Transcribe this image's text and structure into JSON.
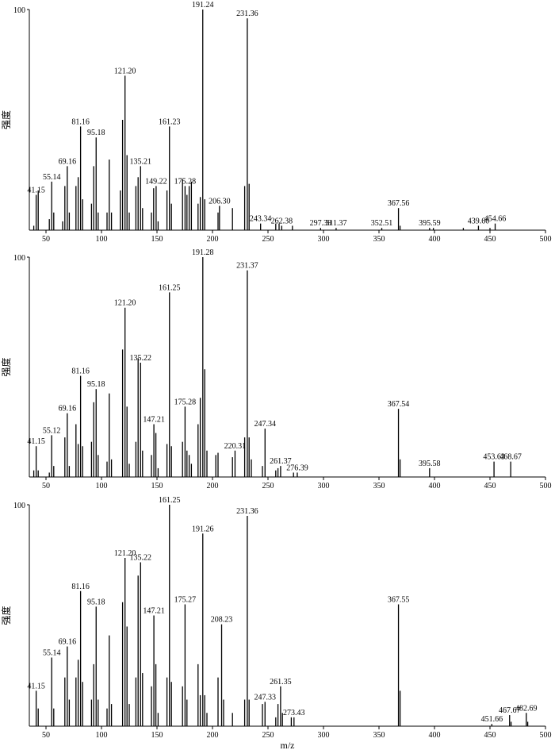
{
  "chart_data": [
    {
      "type": "bar",
      "ylabel": "强度",
      "xlabel": "",
      "xlim": [
        35,
        500
      ],
      "ylim": [
        0,
        100
      ],
      "ytick_labels": [
        "100"
      ],
      "xticks": [
        50,
        100,
        150,
        200,
        250,
        300,
        350,
        400,
        450,
        500
      ],
      "xtick_labels": [
        "50",
        "100",
        "150",
        "200",
        "250",
        "300",
        "350",
        "400",
        "450",
        "500"
      ],
      "peaks": [
        {
          "x": 41.15,
          "y": 16,
          "label": "41.15"
        },
        {
          "x": 43,
          "y": 18
        },
        {
          "x": 39,
          "y": 2
        },
        {
          "x": 53,
          "y": 5
        },
        {
          "x": 55.14,
          "y": 22,
          "label": "55.14"
        },
        {
          "x": 57,
          "y": 8
        },
        {
          "x": 65,
          "y": 4
        },
        {
          "x": 67,
          "y": 20
        },
        {
          "x": 69.16,
          "y": 29,
          "label": "69.16"
        },
        {
          "x": 71,
          "y": 8
        },
        {
          "x": 77,
          "y": 20
        },
        {
          "x": 79,
          "y": 24
        },
        {
          "x": 81.16,
          "y": 47,
          "label": "81.16"
        },
        {
          "x": 83,
          "y": 14
        },
        {
          "x": 91,
          "y": 12
        },
        {
          "x": 93,
          "y": 29
        },
        {
          "x": 95.18,
          "y": 42,
          "label": "95.18"
        },
        {
          "x": 97,
          "y": 8
        },
        {
          "x": 105,
          "y": 8
        },
        {
          "x": 107,
          "y": 32
        },
        {
          "x": 109,
          "y": 8
        },
        {
          "x": 117,
          "y": 18
        },
        {
          "x": 119,
          "y": 50
        },
        {
          "x": 121.2,
          "y": 70,
          "label": "121.20"
        },
        {
          "x": 123,
          "y": 34
        },
        {
          "x": 125,
          "y": 8
        },
        {
          "x": 131,
          "y": 20
        },
        {
          "x": 133,
          "y": 24
        },
        {
          "x": 135.21,
          "y": 29,
          "label": "135.21"
        },
        {
          "x": 137,
          "y": 10
        },
        {
          "x": 145,
          "y": 8
        },
        {
          "x": 147,
          "y": 19
        },
        {
          "x": 149.22,
          "y": 20,
          "label": "149.22"
        },
        {
          "x": 151,
          "y": 4
        },
        {
          "x": 159,
          "y": 18
        },
        {
          "x": 161.23,
          "y": 47,
          "label": "161.23"
        },
        {
          "x": 163,
          "y": 12
        },
        {
          "x": 173,
          "y": 23
        },
        {
          "x": 175.28,
          "y": 20,
          "label": "175.28"
        },
        {
          "x": 177,
          "y": 16
        },
        {
          "x": 179,
          "y": 20
        },
        {
          "x": 181,
          "y": 22
        },
        {
          "x": 187,
          "y": 12
        },
        {
          "x": 189,
          "y": 15
        },
        {
          "x": 191.24,
          "y": 100,
          "label": "191.24"
        },
        {
          "x": 193,
          "y": 14
        },
        {
          "x": 205,
          "y": 8
        },
        {
          "x": 206.3,
          "y": 11,
          "label": "206.30"
        },
        {
          "x": 218,
          "y": 10
        },
        {
          "x": 229,
          "y": 20
        },
        {
          "x": 231.36,
          "y": 96,
          "label": "231.36"
        },
        {
          "x": 233,
          "y": 21
        },
        {
          "x": 243.34,
          "y": 3,
          "label": "243.34"
        },
        {
          "x": 257,
          "y": 3
        },
        {
          "x": 260,
          "y": 3
        },
        {
          "x": 262.38,
          "y": 2,
          "label": "262.38"
        },
        {
          "x": 272,
          "y": 2
        },
        {
          "x": 297.39,
          "y": 1,
          "label": "297.39"
        },
        {
          "x": 311.37,
          "y": 1,
          "label": "311.37"
        },
        {
          "x": 352.51,
          "y": 1,
          "label": "352.51"
        },
        {
          "x": 367.56,
          "y": 10,
          "label": "367.56"
        },
        {
          "x": 369,
          "y": 2
        },
        {
          "x": 395.59,
          "y": 1,
          "label": "395.59"
        },
        {
          "x": 399,
          "y": 1
        },
        {
          "x": 426,
          "y": 1
        },
        {
          "x": 439.6,
          "y": 2,
          "label": "439.60"
        },
        {
          "x": 450,
          "y": 1
        },
        {
          "x": 454.66,
          "y": 3,
          "label": "454.66"
        }
      ]
    },
    {
      "type": "bar",
      "ylabel": "强度",
      "xlabel": "",
      "xlim": [
        35,
        500
      ],
      "ylim": [
        0,
        100
      ],
      "ytick_labels": [
        "100"
      ],
      "xticks": [
        50,
        100,
        150,
        200,
        250,
        300,
        350,
        400,
        450,
        500
      ],
      "xtick_labels": [
        "50",
        "100",
        "150",
        "200",
        "250",
        "300",
        "350",
        "400",
        "450",
        "500"
      ],
      "peaks": [
        {
          "x": 39,
          "y": 3
        },
        {
          "x": 41.15,
          "y": 14,
          "label": "41.15"
        },
        {
          "x": 43,
          "y": 3
        },
        {
          "x": 53,
          "y": 2
        },
        {
          "x": 55.12,
          "y": 19,
          "label": "55.12"
        },
        {
          "x": 57,
          "y": 5
        },
        {
          "x": 67,
          "y": 18
        },
        {
          "x": 69.16,
          "y": 29,
          "label": "69.16"
        },
        {
          "x": 71,
          "y": 5
        },
        {
          "x": 77,
          "y": 24
        },
        {
          "x": 79,
          "y": 15
        },
        {
          "x": 81.16,
          "y": 46,
          "label": "81.16"
        },
        {
          "x": 83,
          "y": 14
        },
        {
          "x": 91,
          "y": 16
        },
        {
          "x": 93,
          "y": 34
        },
        {
          "x": 95.18,
          "y": 40,
          "label": "95.18"
        },
        {
          "x": 97,
          "y": 10
        },
        {
          "x": 105,
          "y": 7
        },
        {
          "x": 107,
          "y": 38
        },
        {
          "x": 109,
          "y": 8
        },
        {
          "x": 119,
          "y": 58
        },
        {
          "x": 121.2,
          "y": 77,
          "label": "121.20"
        },
        {
          "x": 123,
          "y": 32
        },
        {
          "x": 125,
          "y": 6
        },
        {
          "x": 131,
          "y": 16
        },
        {
          "x": 133,
          "y": 54
        },
        {
          "x": 135.22,
          "y": 52,
          "label": "135.22"
        },
        {
          "x": 137,
          "y": 12
        },
        {
          "x": 145,
          "y": 10
        },
        {
          "x": 147.21,
          "y": 24,
          "label": "147.21"
        },
        {
          "x": 149,
          "y": 20
        },
        {
          "x": 151,
          "y": 4
        },
        {
          "x": 159,
          "y": 15
        },
        {
          "x": 161.25,
          "y": 84,
          "label": "161.25"
        },
        {
          "x": 163,
          "y": 14
        },
        {
          "x": 173,
          "y": 16
        },
        {
          "x": 175.28,
          "y": 32,
          "label": "175.28"
        },
        {
          "x": 177,
          "y": 12
        },
        {
          "x": 179,
          "y": 10
        },
        {
          "x": 181,
          "y": 6
        },
        {
          "x": 187,
          "y": 24
        },
        {
          "x": 189,
          "y": 36
        },
        {
          "x": 191.28,
          "y": 100,
          "label": "191.28"
        },
        {
          "x": 193,
          "y": 49
        },
        {
          "x": 195,
          "y": 12
        },
        {
          "x": 203,
          "y": 10
        },
        {
          "x": 205,
          "y": 11
        },
        {
          "x": 218,
          "y": 9
        },
        {
          "x": 220.31,
          "y": 12,
          "label": "220.31"
        },
        {
          "x": 229,
          "y": 18
        },
        {
          "x": 231.37,
          "y": 94,
          "label": "231.37"
        },
        {
          "x": 233,
          "y": 18
        },
        {
          "x": 235,
          "y": 8
        },
        {
          "x": 245,
          "y": 5
        },
        {
          "x": 247.34,
          "y": 22,
          "label": "247.34"
        },
        {
          "x": 257,
          "y": 3
        },
        {
          "x": 259,
          "y": 4
        },
        {
          "x": 261.37,
          "y": 5,
          "label": "261.37"
        },
        {
          "x": 273,
          "y": 2
        },
        {
          "x": 276.39,
          "y": 2,
          "label": "276.39"
        },
        {
          "x": 367.54,
          "y": 31,
          "label": "367.54"
        },
        {
          "x": 369,
          "y": 8
        },
        {
          "x": 395.58,
          "y": 4,
          "label": "395.58"
        },
        {
          "x": 453.63,
          "y": 7,
          "label": "453.63"
        },
        {
          "x": 468.67,
          "y": 7,
          "label": "468.67"
        }
      ]
    },
    {
      "type": "bar",
      "ylabel": "强度",
      "xlabel": "m/z",
      "xlim": [
        35,
        500
      ],
      "ylim": [
        0,
        100
      ],
      "ytick_labels": [
        "100"
      ],
      "xticks": [
        50,
        100,
        150,
        200,
        250,
        300,
        350,
        400,
        450,
        500
      ],
      "xtick_labels": [
        "50",
        "100",
        "150",
        "200",
        "250",
        "300",
        "350",
        "400",
        "450",
        "500"
      ],
      "peaks": [
        {
          "x": 41.15,
          "y": 16,
          "label": "41.15"
        },
        {
          "x": 43,
          "y": 8
        },
        {
          "x": 55.14,
          "y": 31,
          "label": "55.14"
        },
        {
          "x": 57,
          "y": 8
        },
        {
          "x": 67,
          "y": 22
        },
        {
          "x": 69.16,
          "y": 36,
          "label": "69.16"
        },
        {
          "x": 71,
          "y": 12
        },
        {
          "x": 77,
          "y": 22
        },
        {
          "x": 79,
          "y": 30
        },
        {
          "x": 81.16,
          "y": 61,
          "label": "81.16"
        },
        {
          "x": 83,
          "y": 20
        },
        {
          "x": 91,
          "y": 12
        },
        {
          "x": 93,
          "y": 28
        },
        {
          "x": 95.18,
          "y": 54,
          "label": "95.18"
        },
        {
          "x": 97,
          "y": 12
        },
        {
          "x": 105,
          "y": 8
        },
        {
          "x": 107,
          "y": 41
        },
        {
          "x": 109,
          "y": 10
        },
        {
          "x": 119,
          "y": 56
        },
        {
          "x": 121.2,
          "y": 76,
          "label": "121.20"
        },
        {
          "x": 123,
          "y": 45
        },
        {
          "x": 125,
          "y": 10
        },
        {
          "x": 131,
          "y": 22
        },
        {
          "x": 133,
          "y": 68
        },
        {
          "x": 135.22,
          "y": 74,
          "label": "135.22"
        },
        {
          "x": 137,
          "y": 24
        },
        {
          "x": 145,
          "y": 18
        },
        {
          "x": 147.21,
          "y": 50,
          "label": "147.21"
        },
        {
          "x": 149,
          "y": 28
        },
        {
          "x": 151,
          "y": 6
        },
        {
          "x": 159,
          "y": 22
        },
        {
          "x": 161.25,
          "y": 100,
          "label": "161.25"
        },
        {
          "x": 163,
          "y": 20
        },
        {
          "x": 173,
          "y": 18
        },
        {
          "x": 175.27,
          "y": 55,
          "label": "175.27"
        },
        {
          "x": 177,
          "y": 12
        },
        {
          "x": 187,
          "y": 28
        },
        {
          "x": 189,
          "y": 14
        },
        {
          "x": 191.26,
          "y": 87,
          "label": "191.26"
        },
        {
          "x": 193,
          "y": 14
        },
        {
          "x": 195,
          "y": 6
        },
        {
          "x": 205,
          "y": 22
        },
        {
          "x": 208.23,
          "y": 46,
          "label": "208.23"
        },
        {
          "x": 210,
          "y": 12
        },
        {
          "x": 218,
          "y": 6
        },
        {
          "x": 229,
          "y": 12
        },
        {
          "x": 231.36,
          "y": 95,
          "label": "231.36"
        },
        {
          "x": 233,
          "y": 12
        },
        {
          "x": 245,
          "y": 10
        },
        {
          "x": 247.33,
          "y": 11,
          "label": "247.33"
        },
        {
          "x": 257,
          "y": 4
        },
        {
          "x": 259,
          "y": 10
        },
        {
          "x": 261.35,
          "y": 18,
          "label": "261.35"
        },
        {
          "x": 263,
          "y": 6
        },
        {
          "x": 271,
          "y": 4
        },
        {
          "x": 273.43,
          "y": 4,
          "label": "273.43"
        },
        {
          "x": 367.55,
          "y": 55,
          "label": "367.55"
        },
        {
          "x": 369,
          "y": 16
        },
        {
          "x": 451.66,
          "y": 1,
          "label": "451.66"
        },
        {
          "x": 467.67,
          "y": 5,
          "label": "467.67"
        },
        {
          "x": 469,
          "y": 2
        },
        {
          "x": 482.69,
          "y": 6,
          "label": "482.69"
        },
        {
          "x": 484,
          "y": 2
        }
      ]
    }
  ]
}
